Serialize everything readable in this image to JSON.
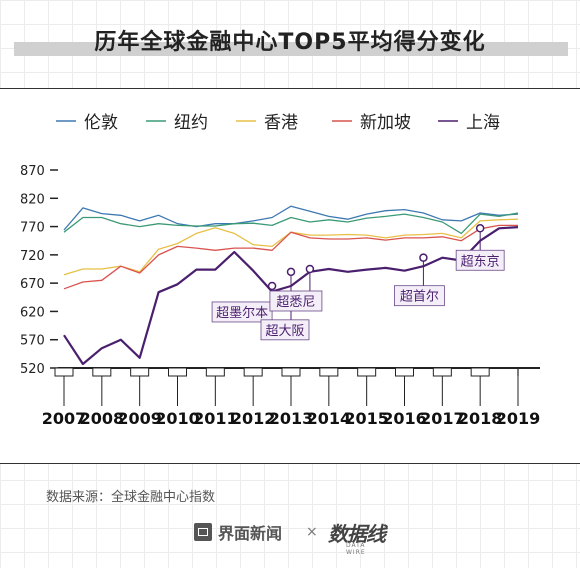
{
  "title": "历年全球金融中心TOP5平均得分变化",
  "source": "数据来源：全球金融中心指数",
  "footer": {
    "brand": "界面新闻",
    "times": "×",
    "partner": "数据线",
    "partner_sub": "DATA WIRE"
  },
  "chart_data": {
    "type": "line",
    "x": [
      2007,
      2007.5,
      2008,
      2008.5,
      2009,
      2009.5,
      2010,
      2010.5,
      2011,
      2011.5,
      2012,
      2012.5,
      2013,
      2013.5,
      2014,
      2014.5,
      2015,
      2015.5,
      2016,
      2016.5,
      2017,
      2017.5,
      2018,
      2018.5,
      2019
    ],
    "xticks": [
      2007,
      2008,
      2009,
      2010,
      2011,
      2012,
      2013,
      2014,
      2015,
      2016,
      2017,
      2018,
      2019
    ],
    "yticks": [
      520,
      570,
      620,
      670,
      720,
      770,
      820,
      870
    ],
    "ylim": [
      520,
      870
    ],
    "grid": false,
    "legend_position": "top",
    "series": [
      {
        "name": "伦敦",
        "color": "#3e78b2",
        "values": [
          764,
          803,
          793,
          790,
          780,
          790,
          775,
          770,
          775,
          775,
          780,
          786,
          806,
          797,
          788,
          783,
          792,
          798,
          800,
          794,
          782,
          780,
          794,
          790,
          792
        ]
      },
      {
        "name": "纽约",
        "color": "#3b9a76",
        "values": [
          760,
          786,
          786,
          775,
          770,
          775,
          772,
          771,
          771,
          775,
          776,
          772,
          786,
          778,
          782,
          778,
          785,
          788,
          792,
          786,
          778,
          758,
          792,
          788,
          794
        ]
      },
      {
        "name": "香港",
        "color": "#e8c046",
        "values": [
          685,
          695,
          695,
          700,
          690,
          730,
          740,
          758,
          768,
          758,
          738,
          735,
          760,
          755,
          755,
          756,
          755,
          750,
          755,
          756,
          758,
          750,
          780,
          782,
          783
        ]
      },
      {
        "name": "新加坡",
        "color": "#d9534f",
        "values": [
          660,
          672,
          675,
          700,
          688,
          720,
          735,
          732,
          728,
          732,
          732,
          728,
          760,
          750,
          748,
          748,
          750,
          746,
          750,
          750,
          752,
          745,
          766,
          772,
          772
        ]
      },
      {
        "name": "上海",
        "color": "#4a1f6e",
        "values": [
          578,
          527,
          555,
          570,
          538,
          654,
          668,
          694,
          694,
          725,
          692,
          655,
          665,
          690,
          695,
          690,
          694,
          697,
          692,
          700,
          715,
          710,
          745,
          767,
          769
        ]
      }
    ],
    "annotations": [
      {
        "label": "超墨尔本",
        "x": 2012.5,
        "y": 665
      },
      {
        "label": "超大阪",
        "x": 2013,
        "y": 690
      },
      {
        "label": "超悉尼",
        "x": 2013.5,
        "y": 695
      },
      {
        "label": "超首尔",
        "x": 2016.5,
        "y": 715
      },
      {
        "label": "超东京",
        "x": 2018,
        "y": 767
      }
    ]
  }
}
